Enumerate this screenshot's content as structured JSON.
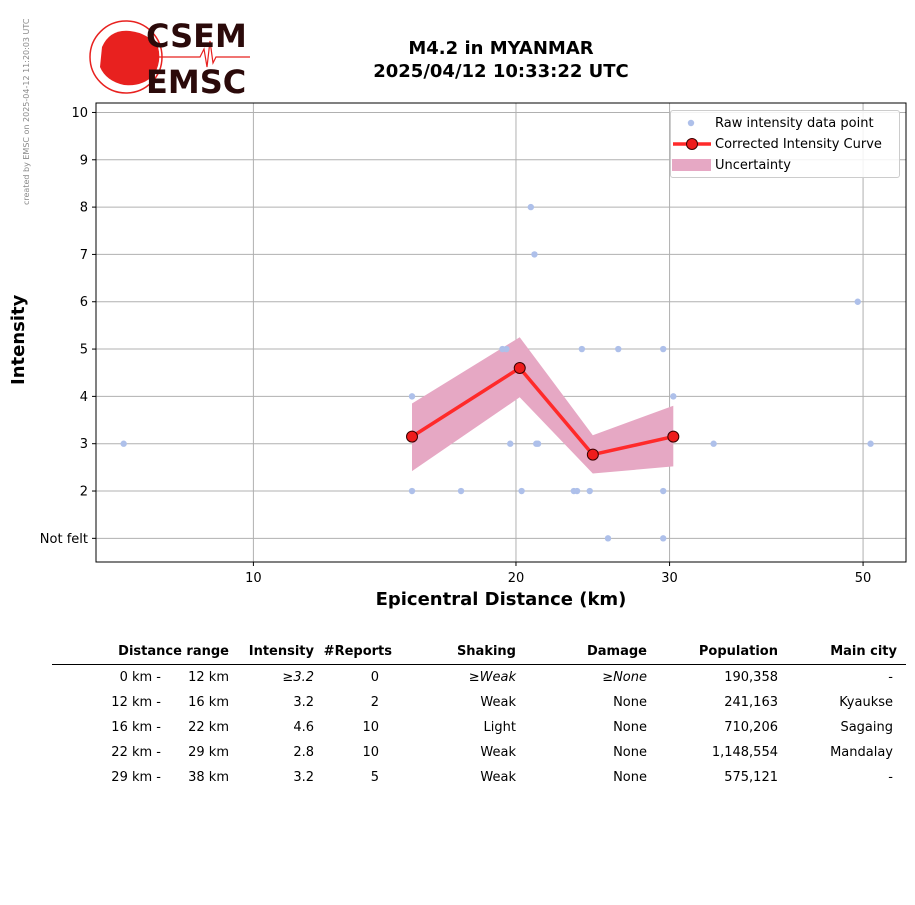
{
  "side_note": "created by EMSC on 2025-04-12 11:20:03 UTC",
  "logo": {
    "line1": "CSEM",
    "line2": "EMSC",
    "colors": {
      "red": "#e8211f",
      "dark": "#2b0a0a"
    }
  },
  "title": {
    "line1": "M4.2 in MYANMAR",
    "line2": "2025/04/12 10:33:22 UTC"
  },
  "chart_data": {
    "type": "scatter",
    "xlabel": "Epicentral Distance (km)",
    "ylabel": "Intensity",
    "x_scale": "log",
    "xlim": [
      6.6,
      56
    ],
    "ylim": [
      0.5,
      10.2
    ],
    "x_ticks": [
      {
        "value": 10,
        "label": "10"
      },
      {
        "value": 20,
        "label": "20"
      },
      {
        "value": 30,
        "label": "30"
      },
      {
        "value": 50,
        "label": "50"
      }
    ],
    "y_ticks": [
      {
        "value": 1,
        "label": "Not felt"
      },
      {
        "value": 2,
        "label": "2"
      },
      {
        "value": 3,
        "label": "3"
      },
      {
        "value": 4,
        "label": "4"
      },
      {
        "value": 5,
        "label": "5"
      },
      {
        "value": 6,
        "label": "6"
      },
      {
        "value": 7,
        "label": "7"
      },
      {
        "value": 8,
        "label": "8"
      },
      {
        "value": 9,
        "label": "9"
      },
      {
        "value": 10,
        "label": "10"
      }
    ],
    "grid": true,
    "legend_position": "top-right",
    "series": [
      {
        "name": "Raw intensity data point",
        "kind": "points",
        "color": "#aec0ea",
        "points": [
          [
            7.1,
            3
          ],
          [
            15.2,
            4
          ],
          [
            15.2,
            2
          ],
          [
            17.3,
            2
          ],
          [
            19.3,
            5
          ],
          [
            19.5,
            5
          ],
          [
            19.7,
            3
          ],
          [
            20.3,
            2
          ],
          [
            20.8,
            8
          ],
          [
            21.0,
            7
          ],
          [
            21.1,
            3
          ],
          [
            21.2,
            3
          ],
          [
            23.3,
            2
          ],
          [
            23.5,
            2
          ],
          [
            23.8,
            5
          ],
          [
            24.3,
            2
          ],
          [
            25.5,
            1
          ],
          [
            26.2,
            5
          ],
          [
            29.5,
            5
          ],
          [
            29.5,
            2
          ],
          [
            29.5,
            1
          ],
          [
            30.3,
            4
          ],
          [
            33.7,
            3
          ],
          [
            49.3,
            6
          ],
          [
            51.0,
            3
          ]
        ]
      },
      {
        "name": "Corrected Intensity Curve",
        "kind": "line",
        "color": "#ff2a2a",
        "marker_color": "#ee1c1c",
        "points": [
          [
            15.2,
            3.15
          ],
          [
            20.2,
            4.6
          ],
          [
            24.5,
            2.77
          ],
          [
            30.3,
            3.15
          ]
        ]
      },
      {
        "name": "Uncertainty",
        "kind": "band",
        "color": "#e6a8c4",
        "x": [
          15.2,
          20.2,
          24.5,
          30.3
        ],
        "upper": [
          3.85,
          5.25,
          3.18,
          3.8
        ],
        "lower": [
          2.42,
          3.98,
          2.37,
          2.52
        ]
      }
    ]
  },
  "table": {
    "headers": [
      "Distance range",
      "Intensity",
      "#Reports",
      "Shaking",
      "Damage",
      "Population",
      "Main city"
    ],
    "rows": [
      {
        "dist_from": "0 km -",
        "dist_to": "12 km",
        "intensity": "≥3.2",
        "reports": "0",
        "shaking": "≥Weak",
        "damage": "≥None",
        "population": "190,358",
        "city": "-"
      },
      {
        "dist_from": "12 km -",
        "dist_to": "16 km",
        "intensity": "3.2",
        "reports": "2",
        "shaking": "Weak",
        "damage": "None",
        "population": "241,163",
        "city": "Kyaukse"
      },
      {
        "dist_from": "16 km -",
        "dist_to": "22 km",
        "intensity": "4.6",
        "reports": "10",
        "shaking": "Light",
        "damage": "None",
        "population": "710,206",
        "city": "Sagaing"
      },
      {
        "dist_from": "22 km -",
        "dist_to": "29 km",
        "intensity": "2.8",
        "reports": "10",
        "shaking": "Weak",
        "damage": "None",
        "population": "1,148,554",
        "city": "Mandalay"
      },
      {
        "dist_from": "29 km -",
        "dist_to": "38 km",
        "intensity": "3.2",
        "reports": "5",
        "shaking": "Weak",
        "damage": "None",
        "population": "575,121",
        "city": "-"
      }
    ]
  }
}
